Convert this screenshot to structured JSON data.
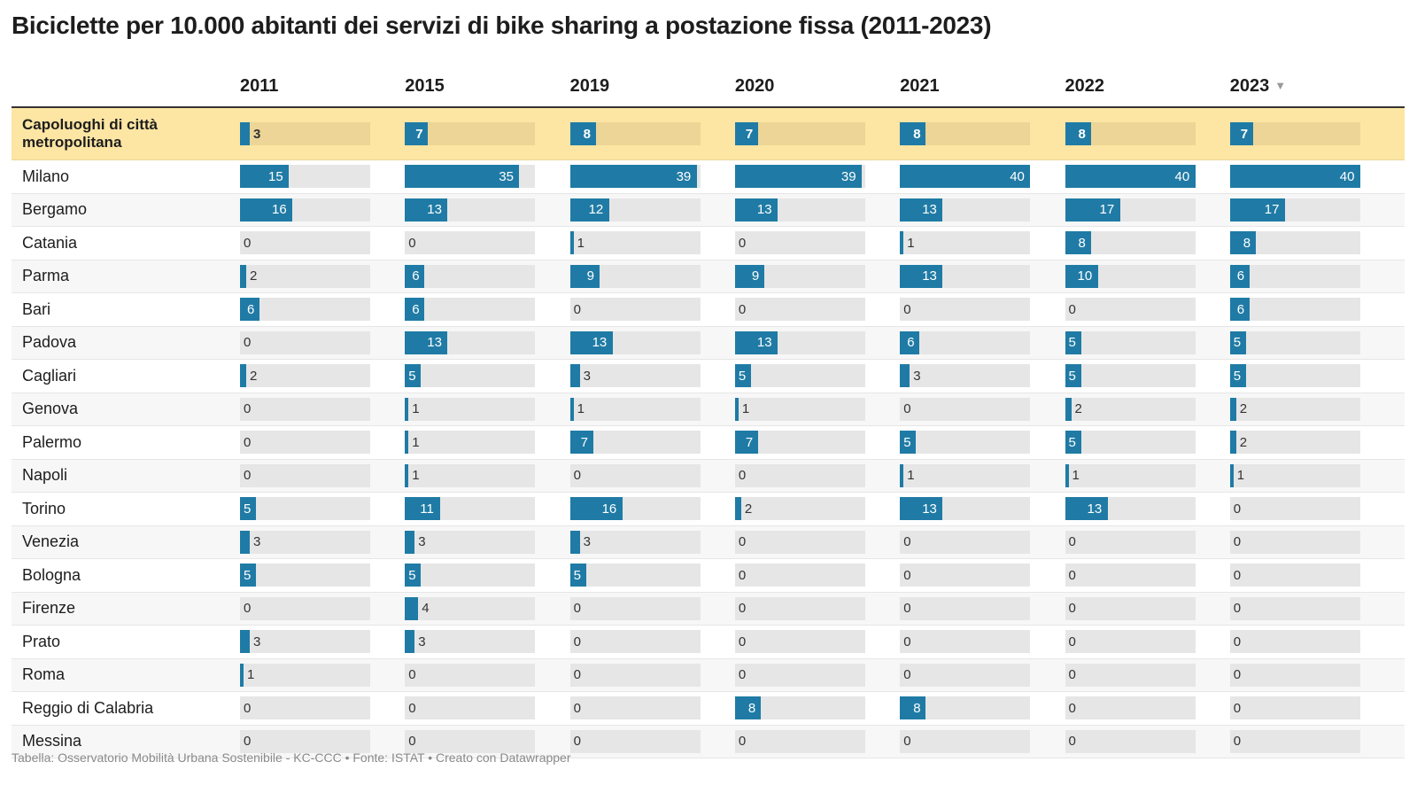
{
  "title": "Biciclette per 10.000 abitanti dei servizi di bike sharing a postazione fissa (2011-2023)",
  "sort_indicator": "▼",
  "footer": "Tabella: Osservatorio Mobilità Urbana Sostenibile - KC-CCC • Fonte: ISTAT • Creato con Datawrapper",
  "colors": {
    "bar": "#1f7ba5",
    "track": "#e6e6e6",
    "highlight": "#fde5a3"
  },
  "chart_data": {
    "type": "table",
    "title": "Biciclette per 10.000 abitanti dei servizi di bike sharing a postazione fissa (2011-2023)",
    "columns": [
      "2011",
      "2015",
      "2019",
      "2020",
      "2021",
      "2022",
      "2023"
    ],
    "sorted_by": "2023",
    "bar_max": 40,
    "rows": [
      {
        "name": "Capoluoghi di città metropolitana",
        "highlight": true,
        "values": [
          3,
          7,
          8,
          7,
          8,
          8,
          7
        ]
      },
      {
        "name": "Milano",
        "values": [
          15,
          35,
          39,
          39,
          40,
          40,
          40
        ]
      },
      {
        "name": "Bergamo",
        "values": [
          16,
          13,
          12,
          13,
          13,
          17,
          17
        ]
      },
      {
        "name": "Catania",
        "values": [
          0,
          0,
          1,
          0,
          1,
          8,
          8
        ]
      },
      {
        "name": "Parma",
        "values": [
          2,
          6,
          9,
          9,
          13,
          10,
          6
        ]
      },
      {
        "name": "Bari",
        "values": [
          6,
          6,
          0,
          0,
          0,
          0,
          6
        ]
      },
      {
        "name": "Padova",
        "values": [
          0,
          13,
          13,
          13,
          6,
          5,
          5
        ]
      },
      {
        "name": "Cagliari",
        "values": [
          2,
          5,
          3,
          5,
          3,
          5,
          5
        ]
      },
      {
        "name": "Genova",
        "values": [
          0,
          1,
          1,
          1,
          0,
          2,
          2
        ]
      },
      {
        "name": "Palermo",
        "values": [
          0,
          1,
          7,
          7,
          5,
          5,
          2
        ]
      },
      {
        "name": "Napoli",
        "values": [
          0,
          1,
          0,
          0,
          1,
          1,
          1
        ]
      },
      {
        "name": "Torino",
        "values": [
          5,
          11,
          16,
          2,
          13,
          13,
          0
        ]
      },
      {
        "name": "Venezia",
        "values": [
          3,
          3,
          3,
          0,
          0,
          0,
          0
        ]
      },
      {
        "name": "Bologna",
        "values": [
          5,
          5,
          5,
          0,
          0,
          0,
          0
        ]
      },
      {
        "name": "Firenze",
        "values": [
          0,
          4,
          0,
          0,
          0,
          0,
          0
        ]
      },
      {
        "name": "Prato",
        "values": [
          3,
          3,
          0,
          0,
          0,
          0,
          0
        ]
      },
      {
        "name": "Roma",
        "values": [
          1,
          0,
          0,
          0,
          0,
          0,
          0
        ]
      },
      {
        "name": "Reggio di Calabria",
        "values": [
          0,
          0,
          0,
          8,
          8,
          0,
          0
        ]
      },
      {
        "name": "Messina",
        "values": [
          0,
          0,
          0,
          0,
          0,
          0,
          0
        ]
      }
    ]
  }
}
